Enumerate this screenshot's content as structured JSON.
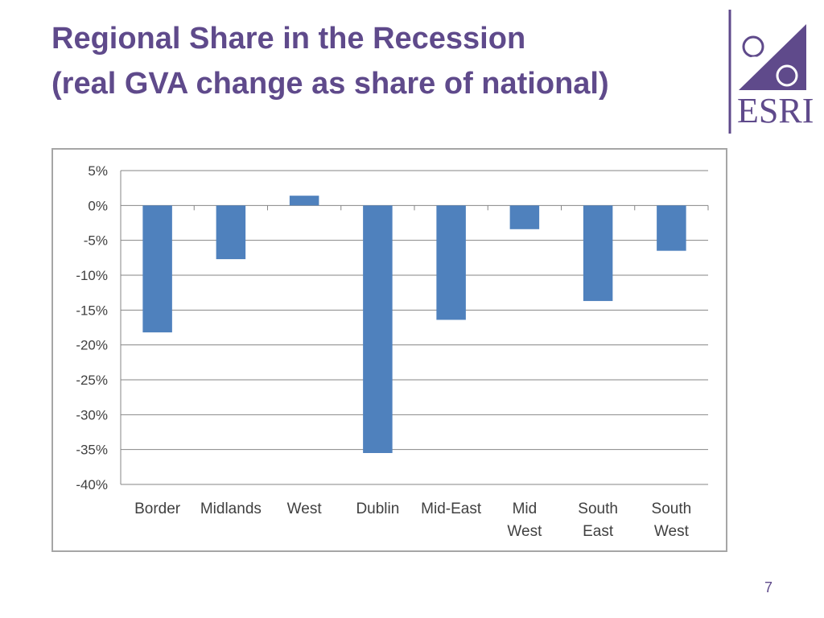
{
  "slide": {
    "title_line1": "Regional Share in the Recession",
    "title_line2": "(real GVA change as share of national)",
    "page_number": "7"
  },
  "logo": {
    "text": "ESRI",
    "color": "#5f4a8b"
  },
  "chart_data": {
    "type": "bar",
    "title": "",
    "xlabel": "",
    "ylabel": "",
    "categories": [
      [
        "Border"
      ],
      [
        "Midlands"
      ],
      [
        "West"
      ],
      [
        "Dublin"
      ],
      [
        "Mid-East"
      ],
      [
        "Mid",
        "West"
      ],
      [
        "South",
        "East"
      ],
      [
        "South",
        "West"
      ]
    ],
    "values": [
      -18.2,
      -7.7,
      1.4,
      -35.5,
      -16.4,
      -3.4,
      -13.7,
      -6.5
    ],
    "ylim": [
      -40,
      5
    ],
    "yticks": [
      5,
      0,
      -5,
      -10,
      -15,
      -20,
      -25,
      -30,
      -35,
      -40
    ],
    "ytick_labels": [
      "5%",
      "0%",
      "-5%",
      "-10%",
      "-15%",
      "-20%",
      "-25%",
      "-30%",
      "-35%",
      "-40%"
    ],
    "grid": true,
    "legend": "none",
    "bar_color": "#4f81bd"
  }
}
